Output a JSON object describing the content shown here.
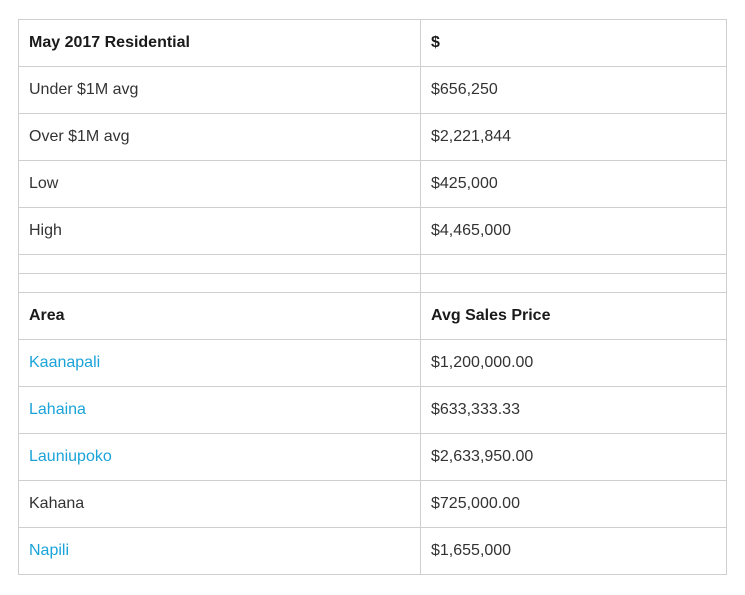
{
  "summary": {
    "header": {
      "label": "May 2017 Residential",
      "value": "$"
    },
    "rows": [
      {
        "label": "Under $1M avg",
        "value": "$656,250"
      },
      {
        "label": "Over $1M avg",
        "value": "$2,221,844"
      },
      {
        "label": "Low",
        "value": "$425,000"
      },
      {
        "label": "High",
        "value": "$4,465,000"
      }
    ]
  },
  "areas": {
    "header": {
      "area": "Area",
      "price": "Avg Sales  Price"
    },
    "rows": [
      {
        "area": "Kaanapali",
        "price": "$1,200,000.00",
        "is_link": true
      },
      {
        "area": "Lahaina",
        "price": "$633,333.33",
        "is_link": true
      },
      {
        "area": "Launiupoko",
        "price": "$2,633,950.00",
        "is_link": true
      },
      {
        "area": "Kahana",
        "price": "$725,000.00",
        "is_link": false
      },
      {
        "area": "Napili",
        "price": "$1,655,000",
        "is_link": true
      }
    ]
  },
  "colors": {
    "link": "#1aa3d9",
    "border": "#cfcfcf",
    "text": "#333333"
  }
}
